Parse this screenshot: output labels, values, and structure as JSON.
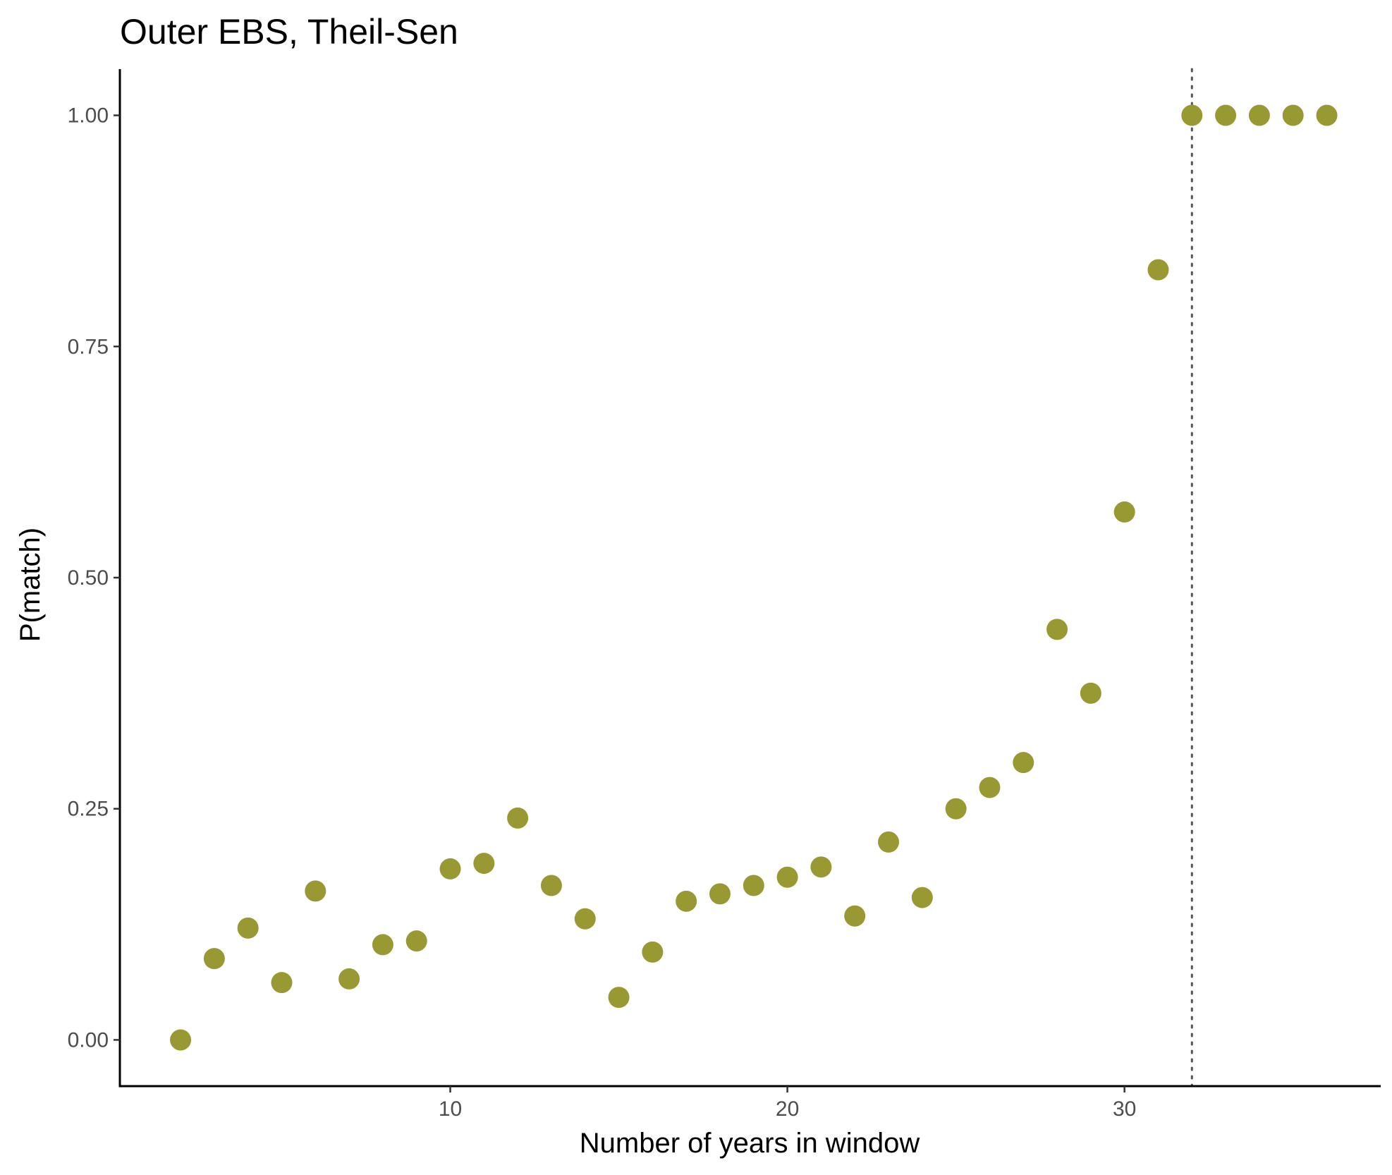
{
  "chart_data": {
    "type": "scatter",
    "title": "Outer EBS, Theil-Sen",
    "xlabel": "Number of years in window",
    "ylabel": "P(match)",
    "xlim": [
      0.2,
      37.6
    ],
    "ylim": [
      -0.05,
      1.05
    ],
    "x_ticks": [
      10,
      20,
      30
    ],
    "x_tick_labels": [
      "10",
      "20",
      "30"
    ],
    "y_ticks": [
      0,
      0.25,
      0.5,
      0.75,
      1.0
    ],
    "y_tick_labels": [
      "0.00",
      "0.25",
      "0.50",
      "0.75",
      "1.00"
    ],
    "point_color": "#999933",
    "vline": {
      "x": 32,
      "style": "dotted",
      "color": "#555555"
    },
    "grid": false,
    "series": [
      {
        "name": "P(match)",
        "x": [
          2,
          3,
          4,
          5,
          6,
          7,
          8,
          9,
          10,
          11,
          12,
          13,
          14,
          15,
          16,
          17,
          18,
          19,
          20,
          21,
          22,
          23,
          24,
          25,
          26,
          27,
          28,
          29,
          30,
          31,
          32,
          33,
          34,
          35,
          36
        ],
        "y": [
          0.0,
          0.088,
          0.121,
          0.062,
          0.161,
          0.066,
          0.103,
          0.107,
          0.185,
          0.191,
          0.24,
          0.167,
          0.131,
          0.046,
          0.095,
          0.15,
          0.158,
          0.167,
          0.176,
          0.187,
          0.134,
          0.214,
          0.154,
          0.25,
          0.273,
          0.3,
          0.444,
          0.375,
          0.571,
          0.833,
          1.0,
          1.0,
          1.0,
          1.0,
          1.0
        ]
      }
    ]
  }
}
